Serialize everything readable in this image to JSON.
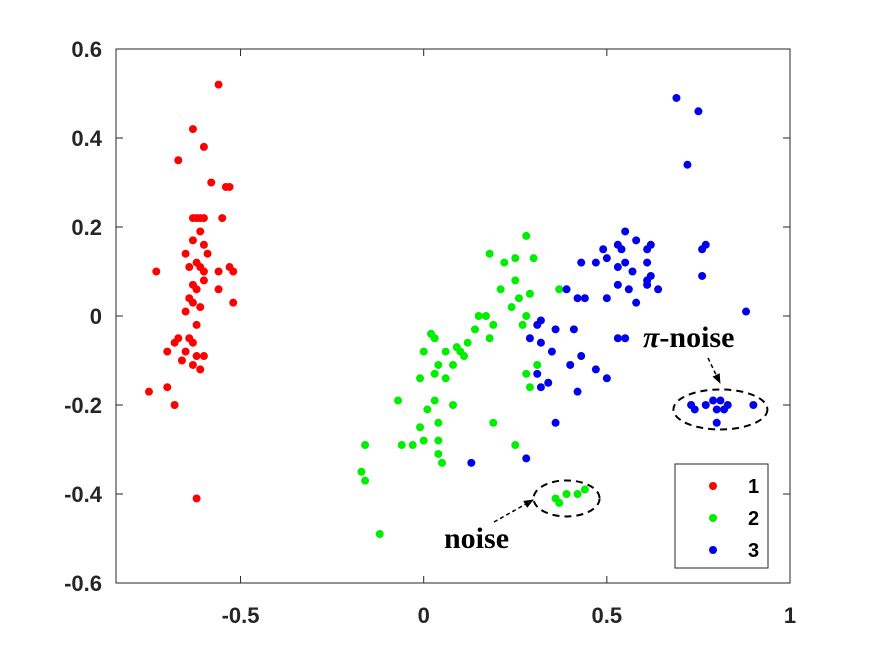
{
  "chart_data": {
    "type": "scatter",
    "xlim": [
      -0.84,
      1.0
    ],
    "ylim": [
      -0.6,
      0.6
    ],
    "x_ticks": [
      -0.5,
      0,
      0.5,
      1
    ],
    "x_tick_labels": [
      "-0.5",
      "0",
      "0.5",
      "1"
    ],
    "y_ticks": [
      -0.6,
      -0.4,
      -0.2,
      0,
      0.2,
      0.4,
      0.6
    ],
    "y_tick_labels": [
      "-0.6",
      "-0.4",
      "-0.2",
      "0",
      "0.2",
      "0.4",
      "0.6"
    ],
    "grid": false,
    "legend_position": "bottom-right",
    "series": [
      {
        "name": "1",
        "color": "#ff0000",
        "points": [
          [
            -0.56,
            0.52
          ],
          [
            -0.63,
            0.42
          ],
          [
            -0.6,
            0.38
          ],
          [
            -0.67,
            0.35
          ],
          [
            -0.58,
            0.3
          ],
          [
            -0.54,
            0.29
          ],
          [
            -0.53,
            0.29
          ],
          [
            -0.63,
            0.22
          ],
          [
            -0.62,
            0.22
          ],
          [
            -0.61,
            0.22
          ],
          [
            -0.6,
            0.22
          ],
          [
            -0.55,
            0.22
          ],
          [
            -0.61,
            0.19
          ],
          [
            -0.63,
            0.17
          ],
          [
            -0.6,
            0.16
          ],
          [
            -0.59,
            0.14
          ],
          [
            -0.65,
            0.14
          ],
          [
            -0.62,
            0.12
          ],
          [
            -0.61,
            0.11
          ],
          [
            -0.64,
            0.11
          ],
          [
            -0.6,
            0.1
          ],
          [
            -0.53,
            0.11
          ],
          [
            -0.52,
            0.1
          ],
          [
            -0.56,
            0.1
          ],
          [
            -0.73,
            0.1
          ],
          [
            -0.6,
            0.08
          ],
          [
            -0.63,
            0.07
          ],
          [
            -0.62,
            0.06
          ],
          [
            -0.56,
            0.06
          ],
          [
            -0.64,
            0.04
          ],
          [
            -0.63,
            0.03
          ],
          [
            -0.52,
            0.03
          ],
          [
            -0.61,
            0.02
          ],
          [
            -0.65,
            0.01
          ],
          [
            -0.62,
            -0.02
          ],
          [
            -0.67,
            -0.05
          ],
          [
            -0.64,
            -0.05
          ],
          [
            -0.68,
            -0.06
          ],
          [
            -0.63,
            -0.06
          ],
          [
            -0.65,
            -0.08
          ],
          [
            -0.7,
            -0.08
          ],
          [
            -0.62,
            -0.09
          ],
          [
            -0.6,
            -0.09
          ],
          [
            -0.66,
            -0.1
          ],
          [
            -0.63,
            -0.11
          ],
          [
            -0.61,
            -0.12
          ],
          [
            -0.7,
            -0.16
          ],
          [
            -0.75,
            -0.17
          ],
          [
            -0.68,
            -0.2
          ],
          [
            -0.62,
            -0.41
          ]
        ]
      },
      {
        "name": "2",
        "color": "#00ee00",
        "points": [
          [
            0.28,
            0.18
          ],
          [
            0.18,
            0.14
          ],
          [
            0.25,
            0.13
          ],
          [
            0.3,
            0.13
          ],
          [
            0.22,
            0.12
          ],
          [
            0.25,
            0.08
          ],
          [
            0.37,
            0.06
          ],
          [
            0.21,
            0.06
          ],
          [
            0.29,
            0.05
          ],
          [
            0.26,
            0.04
          ],
          [
            0.24,
            0.02
          ],
          [
            0.15,
            0.0
          ],
          [
            0.17,
            0.0
          ],
          [
            0.28,
            0.0
          ],
          [
            0.19,
            -0.02
          ],
          [
            0.27,
            -0.02
          ],
          [
            0.14,
            -0.03
          ],
          [
            0.02,
            -0.04
          ],
          [
            0.03,
            -0.05
          ],
          [
            0.18,
            -0.05
          ],
          [
            0.12,
            -0.06
          ],
          [
            0.09,
            -0.07
          ],
          [
            0.06,
            -0.08
          ],
          [
            0.1,
            -0.08
          ],
          [
            0.0,
            -0.08
          ],
          [
            0.11,
            -0.09
          ],
          [
            0.08,
            -0.11
          ],
          [
            0.04,
            -0.11
          ],
          [
            0.31,
            -0.11
          ],
          [
            0.03,
            -0.13
          ],
          [
            0.28,
            -0.13
          ],
          [
            -0.01,
            -0.14
          ],
          [
            0.06,
            -0.14
          ],
          [
            0.29,
            -0.16
          ],
          [
            -0.07,
            -0.19
          ],
          [
            0.03,
            -0.19
          ],
          [
            0.08,
            -0.2
          ],
          [
            0.01,
            -0.21
          ],
          [
            0.04,
            -0.24
          ],
          [
            0.19,
            -0.24
          ],
          [
            -0.01,
            -0.25
          ],
          [
            0.0,
            -0.28
          ],
          [
            0.04,
            -0.28
          ],
          [
            -0.06,
            -0.29
          ],
          [
            -0.03,
            -0.29
          ],
          [
            0.25,
            -0.29
          ],
          [
            0.04,
            -0.31
          ],
          [
            0.05,
            -0.33
          ],
          [
            -0.17,
            -0.35
          ],
          [
            -0.16,
            -0.37
          ],
          [
            -0.12,
            -0.49
          ],
          [
            0.36,
            -0.41
          ],
          [
            0.37,
            -0.42
          ],
          [
            0.39,
            -0.4
          ],
          [
            0.42,
            -0.4
          ],
          [
            0.44,
            -0.39
          ],
          [
            -0.16,
            -0.29
          ]
        ]
      },
      {
        "name": "3",
        "color": "#0000ee",
        "points": [
          [
            0.69,
            0.49
          ],
          [
            0.75,
            0.46
          ],
          [
            0.72,
            0.34
          ],
          [
            0.55,
            0.19
          ],
          [
            0.53,
            0.16
          ],
          [
            0.58,
            0.17
          ],
          [
            0.54,
            0.15
          ],
          [
            0.49,
            0.15
          ],
          [
            0.62,
            0.16
          ],
          [
            0.61,
            0.15
          ],
          [
            0.77,
            0.16
          ],
          [
            0.76,
            0.15
          ],
          [
            0.43,
            0.12
          ],
          [
            0.5,
            0.13
          ],
          [
            0.61,
            0.12
          ],
          [
            0.55,
            0.12
          ],
          [
            0.47,
            0.12
          ],
          [
            0.53,
            0.11
          ],
          [
            0.57,
            0.1
          ],
          [
            0.62,
            0.09
          ],
          [
            0.61,
            0.07
          ],
          [
            0.76,
            0.09
          ],
          [
            0.53,
            0.07
          ],
          [
            0.61,
            0.08
          ],
          [
            0.39,
            0.06
          ],
          [
            0.56,
            0.06
          ],
          [
            0.64,
            0.06
          ],
          [
            0.42,
            0.04
          ],
          [
            0.44,
            0.04
          ],
          [
            0.5,
            0.04
          ],
          [
            0.58,
            0.03
          ],
          [
            0.88,
            0.01
          ],
          [
            0.32,
            -0.01
          ],
          [
            0.31,
            -0.02
          ],
          [
            0.41,
            -0.03
          ],
          [
            0.36,
            -0.03
          ],
          [
            0.29,
            -0.05
          ],
          [
            0.32,
            -0.06
          ],
          [
            0.53,
            -0.05
          ],
          [
            0.55,
            -0.05
          ],
          [
            0.35,
            -0.08
          ],
          [
            0.43,
            -0.09
          ],
          [
            0.4,
            -0.11
          ],
          [
            0.47,
            -0.12
          ],
          [
            0.31,
            -0.13
          ],
          [
            0.5,
            -0.14
          ],
          [
            0.34,
            -0.15
          ],
          [
            0.32,
            -0.16
          ],
          [
            0.42,
            -0.17
          ],
          [
            0.73,
            -0.2
          ],
          [
            0.74,
            -0.21
          ],
          [
            0.77,
            -0.2
          ],
          [
            0.79,
            -0.19
          ],
          [
            0.8,
            -0.21
          ],
          [
            0.81,
            -0.19
          ],
          [
            0.82,
            -0.21
          ],
          [
            0.83,
            -0.2
          ],
          [
            0.9,
            -0.2
          ],
          [
            0.8,
            -0.24
          ],
          [
            0.36,
            -0.24
          ],
          [
            0.13,
            -0.33
          ],
          [
            0.28,
            -0.32
          ]
        ]
      }
    ],
    "annotations": [
      {
        "text_prefix": "π",
        "text": "-noise",
        "ellipse_center": [
          0.81,
          -0.21
        ]
      },
      {
        "text": "noise",
        "ellipse_center": [
          0.39,
          -0.41
        ]
      }
    ]
  }
}
